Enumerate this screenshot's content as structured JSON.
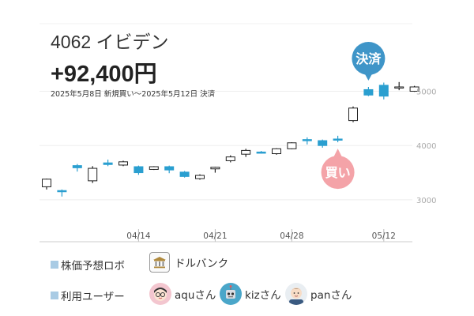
{
  "header": {
    "ticker": "4062 イビデン",
    "profit": "+92,400円",
    "period": "2025年5月8日 新規買い〜2025年5月12日 決済"
  },
  "markers": {
    "buy_label": "買い",
    "sell_label": "決済",
    "buy_color": "#f4a3a8",
    "sell_color": "#3f95c8"
  },
  "legend": {
    "robo_label": "株価予想ロボ",
    "robo_name": "ドルバンク",
    "users_label": "利用ユーザー",
    "users": [
      {
        "name": "aquさん",
        "icon": "avatar-glasses-icon"
      },
      {
        "name": "kizさん",
        "icon": "avatar-robot-icon"
      },
      {
        "name": "panさん",
        "icon": "avatar-man-icon"
      }
    ]
  },
  "chart_data": {
    "type": "candlestick",
    "ylim": [
      2300,
      5300
    ],
    "yticks": [
      3000,
      4000,
      5000
    ],
    "ytick_labels": [
      "3000",
      "4000",
      "5000"
    ],
    "xtick_labels": [
      "04/14",
      "04/21",
      "04/28",
      "05/12"
    ],
    "xtick_index": [
      6,
      11,
      16,
      22
    ],
    "up_color": "#ffffff",
    "down_color": "#2a9fd0",
    "candles": [
      {
        "o": 3240,
        "h": 3390,
        "l": 3190,
        "c": 3380
      },
      {
        "o": 3170,
        "h": 3190,
        "l": 3060,
        "c": 3150
      },
      {
        "o": 3630,
        "h": 3660,
        "l": 3520,
        "c": 3590
      },
      {
        "o": 3350,
        "h": 3620,
        "l": 3310,
        "c": 3580
      },
      {
        "o": 3680,
        "h": 3740,
        "l": 3620,
        "c": 3650
      },
      {
        "o": 3640,
        "h": 3720,
        "l": 3620,
        "c": 3700
      },
      {
        "o": 3610,
        "h": 3630,
        "l": 3460,
        "c": 3500
      },
      {
        "o": 3560,
        "h": 3620,
        "l": 3550,
        "c": 3610
      },
      {
        "o": 3610,
        "h": 3630,
        "l": 3490,
        "c": 3550
      },
      {
        "o": 3510,
        "h": 3530,
        "l": 3410,
        "c": 3430
      },
      {
        "o": 3390,
        "h": 3470,
        "l": 3370,
        "c": 3450
      },
      {
        "o": 3570,
        "h": 3610,
        "l": 3500,
        "c": 3600
      },
      {
        "o": 3720,
        "h": 3820,
        "l": 3690,
        "c": 3790
      },
      {
        "o": 3840,
        "h": 3940,
        "l": 3790,
        "c": 3910
      },
      {
        "o": 3880,
        "h": 3900,
        "l": 3850,
        "c": 3870
      },
      {
        "o": 3850,
        "h": 3950,
        "l": 3830,
        "c": 3940
      },
      {
        "o": 3940,
        "h": 4060,
        "l": 3930,
        "c": 4050
      },
      {
        "o": 4110,
        "h": 4150,
        "l": 4020,
        "c": 4090
      },
      {
        "o": 4090,
        "h": 4110,
        "l": 3960,
        "c": 4000
      },
      {
        "o": 4120,
        "h": 4180,
        "l": 4060,
        "c": 4110
      },
      {
        "o": 4460,
        "h": 4720,
        "l": 4430,
        "c": 4690
      },
      {
        "o": 5030,
        "h": 5080,
        "l": 4910,
        "c": 4930
      },
      {
        "o": 5110,
        "h": 5160,
        "l": 4850,
        "c": 4910
      },
      {
        "o": 5060,
        "h": 5170,
        "l": 5020,
        "c": 5080
      },
      {
        "o": 5000,
        "h": 5100,
        "l": 4990,
        "c": 5080
      }
    ],
    "buy_index": 19,
    "sell_index": 21
  }
}
